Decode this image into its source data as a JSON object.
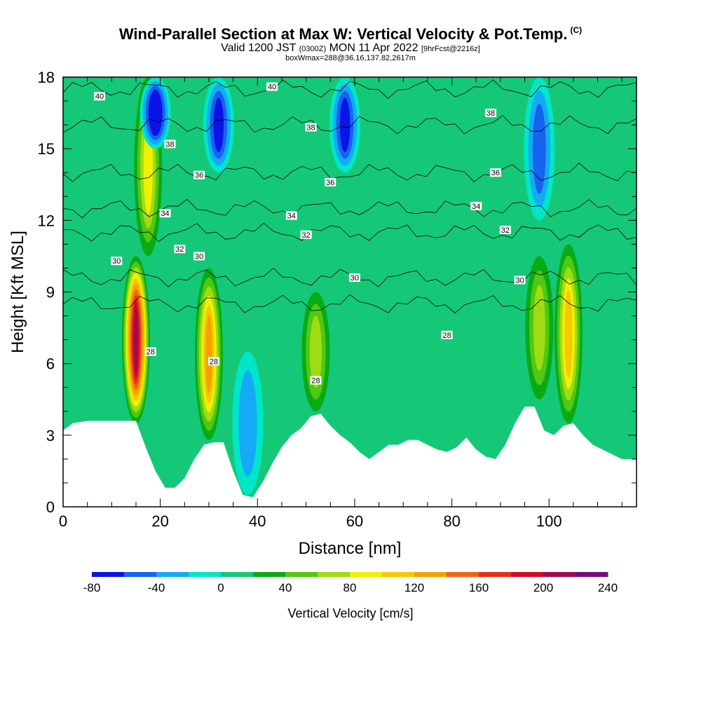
{
  "header": {
    "title": "Wind-Parallel Section at Max W: Vertical Velocity & Pot.Temp.",
    "title_suffix": "(C)",
    "valid_prefix": "Valid 1200 JST",
    "valid_zulu": "(0300Z)",
    "valid_date": "MON 11 Apr 2022",
    "forecast": "[9hrFcst@2216z]",
    "box_info": "boxWmax=288@36.16,137.82,2617m"
  },
  "chart_data": {
    "type": "heatmap",
    "xlabel": "Distance [nm]",
    "ylabel": "Height [Kft MSL]",
    "xlim": [
      0,
      118
    ],
    "ylim": [
      0,
      18
    ],
    "x_ticks": [
      0,
      20,
      40,
      60,
      80,
      100
    ],
    "y_ticks": [
      0,
      3,
      6,
      9,
      12,
      15,
      18
    ],
    "colorbar": {
      "label": "Vertical Velocity [cm/s]",
      "ticks": [
        -80,
        -40,
        0,
        40,
        80,
        120,
        160,
        200,
        240
      ],
      "levels": [
        -80,
        -60,
        -40,
        -20,
        0,
        20,
        40,
        60,
        80,
        100,
        120,
        140,
        160,
        180,
        200,
        220,
        240
      ],
      "colors": [
        "#0a14e6",
        "#1464f0",
        "#14aaf5",
        "#00e6c8",
        "#14c878",
        "#0aaa14",
        "#50c814",
        "#a0dc14",
        "#f0f000",
        "#f5c800",
        "#f5a000",
        "#f06414",
        "#e63214",
        "#d20a28",
        "#a00a50",
        "#780a78"
      ]
    },
    "background_class": "0 to 20",
    "updrafts": [
      {
        "x": 15,
        "z_bottom": 3.5,
        "z_top": 10.5,
        "w_max": 200
      },
      {
        "x": 30,
        "z_bottom": 2.8,
        "z_top": 10.0,
        "w_max": 120
      },
      {
        "x": 52,
        "z_bottom": 4.0,
        "z_top": 9.0,
        "w_max": 60
      },
      {
        "x": 98,
        "z_bottom": 4.5,
        "z_top": 10.5,
        "w_max": 60
      },
      {
        "x": 104,
        "z_bottom": 3.5,
        "z_top": 11.0,
        "w_max": 110
      },
      {
        "x": 17.5,
        "z_bottom": 10.5,
        "z_top": 18,
        "w_max": 80
      }
    ],
    "downdrafts": [
      {
        "x": 38,
        "z_bottom": 0.5,
        "z_top": 6.5,
        "w_min": -20
      },
      {
        "x": 32,
        "z_bottom": 14,
        "z_top": 18,
        "w_min": -60
      },
      {
        "x": 58,
        "z_bottom": 14,
        "z_top": 18,
        "w_min": -60
      },
      {
        "x": 98,
        "z_bottom": 12,
        "z_top": 18,
        "w_min": -40
      },
      {
        "x": 19,
        "z_bottom": 15,
        "z_top": 18,
        "w_min": -80
      }
    ],
    "theta_contours": [
      {
        "theta": 28,
        "z": 8.5
      },
      {
        "theta": 30,
        "z": 9.6
      },
      {
        "theta": 32,
        "z": 11.5
      },
      {
        "theta": 34,
        "z": 12.5
      },
      {
        "theta": 36,
        "z": 14.0
      },
      {
        "theta": 38,
        "z": 16.0
      },
      {
        "theta": 40,
        "z": 17.5
      }
    ],
    "contour_labels": [
      {
        "text": "40",
        "x": 7.5,
        "z": 17.2
      },
      {
        "text": "40",
        "x": 43,
        "z": 17.6
      },
      {
        "text": "38",
        "x": 22,
        "z": 15.2
      },
      {
        "text": "38",
        "x": 51,
        "z": 15.9
      },
      {
        "text": "38",
        "x": 88,
        "z": 16.5
      },
      {
        "text": "36",
        "x": 28,
        "z": 13.9
      },
      {
        "text": "36",
        "x": 55,
        "z": 13.6
      },
      {
        "text": "36",
        "x": 89,
        "z": 14.0
      },
      {
        "text": "34",
        "x": 21,
        "z": 12.3
      },
      {
        "text": "34",
        "x": 47,
        "z": 12.2
      },
      {
        "text": "34",
        "x": 85,
        "z": 12.6
      },
      {
        "text": "32",
        "x": 24,
        "z": 10.8
      },
      {
        "text": "32",
        "x": 50,
        "z": 11.4
      },
      {
        "text": "32",
        "x": 91,
        "z": 11.6
      },
      {
        "text": "30",
        "x": 11,
        "z": 10.3
      },
      {
        "text": "30",
        "x": 28,
        "z": 10.5
      },
      {
        "text": "30",
        "x": 60,
        "z": 9.6
      },
      {
        "text": "30",
        "x": 94,
        "z": 9.5
      },
      {
        "text": "28",
        "x": 18,
        "z": 6.5
      },
      {
        "text": "28",
        "x": 31,
        "z": 6.1
      },
      {
        "text": "28",
        "x": 52,
        "z": 5.3
      },
      {
        "text": "28",
        "x": 79,
        "z": 7.2
      }
    ],
    "terrain": {
      "x": [
        0,
        2,
        5,
        10,
        15,
        17,
        19,
        21,
        23,
        25,
        27,
        29,
        31,
        33,
        35,
        37,
        39,
        41,
        43,
        45,
        47,
        49,
        51,
        53,
        55,
        57,
        59,
        61,
        63,
        65,
        67,
        69,
        71,
        73,
        75,
        77,
        79,
        81,
        83,
        85,
        87,
        89,
        91,
        93,
        95,
        97,
        99,
        101,
        103,
        105,
        107,
        109,
        111,
        113,
        115,
        118
      ],
      "z": [
        3.2,
        3.5,
        3.6,
        3.6,
        3.6,
        2.5,
        1.5,
        0.8,
        0.8,
        1.2,
        2.0,
        2.6,
        2.7,
        2.7,
        1.5,
        0.5,
        0.4,
        1.0,
        1.8,
        2.5,
        3.0,
        3.3,
        3.8,
        3.9,
        3.4,
        3.0,
        2.7,
        2.3,
        2.0,
        2.3,
        2.6,
        2.6,
        2.8,
        2.8,
        2.6,
        2.4,
        2.3,
        2.5,
        2.9,
        2.4,
        2.1,
        2.0,
        2.6,
        3.5,
        4.2,
        4.2,
        3.2,
        3.0,
        3.4,
        3.5,
        3.0,
        2.6,
        2.4,
        2.2,
        2.0,
        2.0
      ]
    }
  }
}
